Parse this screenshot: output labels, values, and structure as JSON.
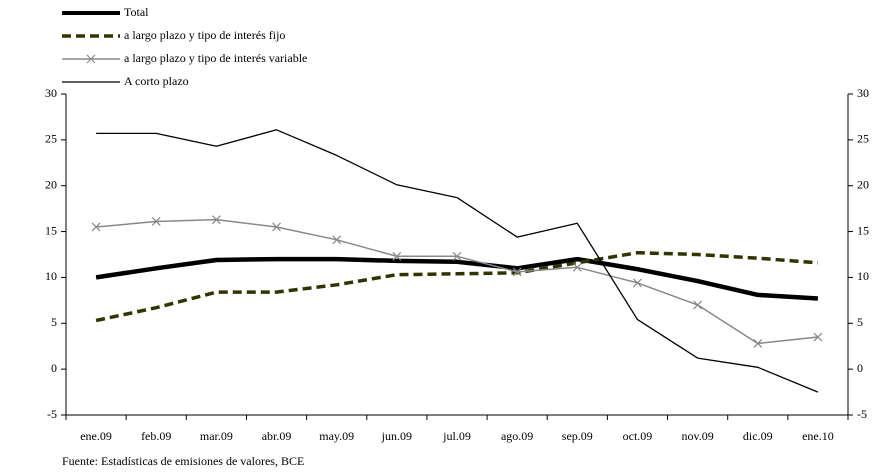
{
  "chart_data": {
    "type": "line",
    "categories": [
      "ene.09",
      "feb.09",
      "mar.09",
      "abr.09",
      "may.09",
      "jun.09",
      "jul.09",
      "ago.09",
      "sep.09",
      "oct.09",
      "nov.09",
      "dic.09",
      "ene.10"
    ],
    "series": [
      {
        "name": "Total",
        "color": "#000000",
        "values": [
          10.0,
          11.0,
          11.9,
          12.0,
          12.0,
          11.8,
          11.7,
          11.0,
          12.0,
          10.9,
          9.6,
          8.1,
          7.7
        ]
      },
      {
        "name": "a largo plazo y tipo de interés fijo",
        "color": "#333300",
        "values": [
          5.3,
          6.7,
          8.4,
          8.4,
          9.2,
          10.3,
          10.4,
          10.5,
          11.6,
          12.7,
          12.5,
          12.1,
          11.6
        ]
      },
      {
        "name": "a largo plazo y tipo de interés variable",
        "color": "#888888",
        "values": [
          15.5,
          16.1,
          16.3,
          15.5,
          14.1,
          12.3,
          12.3,
          10.6,
          11.1,
          9.4,
          7.0,
          2.8,
          3.5
        ]
      },
      {
        "name": "A corto plazo",
        "color": "#000000",
        "values": [
          25.7,
          25.7,
          24.3,
          26.1,
          23.3,
          20.1,
          18.7,
          14.4,
          15.9,
          5.4,
          1.2,
          0.2,
          -2.5
        ]
      }
    ],
    "ylim": [
      -5,
      30
    ],
    "yticks": [
      -5,
      0,
      5,
      10,
      15,
      20,
      25,
      30
    ],
    "y2lim": [
      -5,
      30
    ],
    "y2ticks": [
      -5,
      0,
      5,
      10,
      15,
      20,
      25,
      30
    ],
    "source": "Fuente: Estadísticas de emisiones de valores, BCE"
  }
}
